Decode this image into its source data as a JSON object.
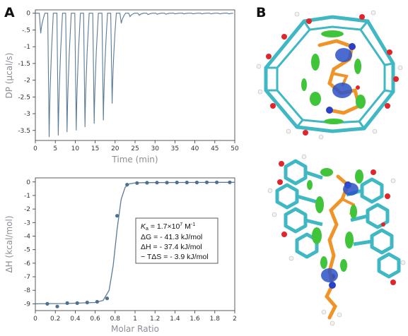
{
  "panels": {
    "a": "A",
    "b": "B"
  },
  "colors": {
    "trace": "#5a7b98",
    "axis": "#333333",
    "title": "#8a8f96"
  },
  "chart_data": [
    {
      "type": "line",
      "panel": "A (top)",
      "xlabel": "Time (min)",
      "ylabel": "DP (μcal/s)",
      "xlim": [
        0,
        50
      ],
      "ylim": [
        -3.8,
        0.1
      ],
      "xticks": [
        "0",
        "5",
        "10",
        "15",
        "20",
        "25",
        "30",
        "35",
        "40",
        "45",
        "50"
      ],
      "yticks": [
        "0",
        "-.5",
        "-1",
        "-1.5",
        "-2",
        "-2.5",
        "-3",
        "-3.5"
      ],
      "series": [
        {
          "baseline": 0,
          "injection_times": [
            1.0,
            3.1,
            5.4,
            7.6,
            9.9,
            12.1,
            14.4,
            16.7,
            18.9,
            21.2,
            23.4,
            25.7,
            27.9,
            30.2,
            32.4,
            34.7,
            36.9,
            39.2,
            41.4,
            43.7,
            45.9,
            48.2
          ],
          "peak_values": [
            -0.6,
            -3.7,
            -3.65,
            -3.55,
            -3.5,
            -3.4,
            -3.3,
            -3.2,
            -2.7,
            -0.3,
            -0.1,
            -0.06,
            -0.04,
            -0.03,
            -0.03,
            -0.02,
            -0.02,
            -0.02,
            -0.02,
            -0.02,
            -0.02,
            -0.02
          ]
        }
      ]
    },
    {
      "type": "scatter",
      "panel": "A (bottom)",
      "xlabel": "Molar Ratio",
      "ylabel": "ΔH (kcal/mol)",
      "xlim": [
        0,
        2
      ],
      "ylim": [
        -9.5,
        0.3
      ],
      "xticks": [
        "0",
        "0.2",
        "0.4",
        "0.6",
        "0.8",
        "1",
        "1.2",
        "1.4",
        "1.6",
        "1.8",
        "2"
      ],
      "yticks": [
        "0",
        "-1",
        "-2",
        "-3",
        "-4",
        "-5",
        "-6",
        "-7",
        "-8",
        "-9"
      ],
      "x": [
        0.12,
        0.22,
        0.32,
        0.42,
        0.52,
        0.62,
        0.72,
        0.82,
        0.92,
        1.02,
        1.12,
        1.22,
        1.32,
        1.42,
        1.52,
        1.62,
        1.72,
        1.82,
        1.95
      ],
      "y": [
        -9.0,
        -9.2,
        -8.95,
        -8.95,
        -8.9,
        -8.85,
        -8.6,
        -2.5,
        -0.2,
        -0.08,
        -0.06,
        -0.05,
        -0.05,
        -0.04,
        -0.04,
        -0.04,
        -0.03,
        -0.03,
        -0.03
      ],
      "fit_x": [
        0.0,
        0.3,
        0.6,
        0.68,
        0.74,
        0.78,
        0.82,
        0.86,
        0.9,
        0.94,
        1.0,
        1.1,
        1.5,
        2.0
      ],
      "fit_y": [
        -9.0,
        -8.98,
        -8.9,
        -8.75,
        -8.0,
        -6.2,
        -3.5,
        -1.3,
        -0.4,
        -0.15,
        -0.07,
        -0.05,
        -0.04,
        -0.03
      ],
      "annotations": [
        {
          "label": "K",
          "sub": "a",
          "value": " = 1.7×10",
          "sup": "7",
          "unit": " M",
          "unit_sup": "-1"
        },
        {
          "text": "ΔG = - 41.3 kJ/mol"
        },
        {
          "text": "ΔH = - 37.4 kJ/mol"
        },
        {
          "text": "− TΔS = - 3.9 kJ/mol"
        }
      ]
    }
  ],
  "molecular_renderings": [
    {
      "name": "top-molecular-structure",
      "legend": ""
    },
    {
      "name": "bottom-molecular-structure",
      "legend": ""
    }
  ]
}
